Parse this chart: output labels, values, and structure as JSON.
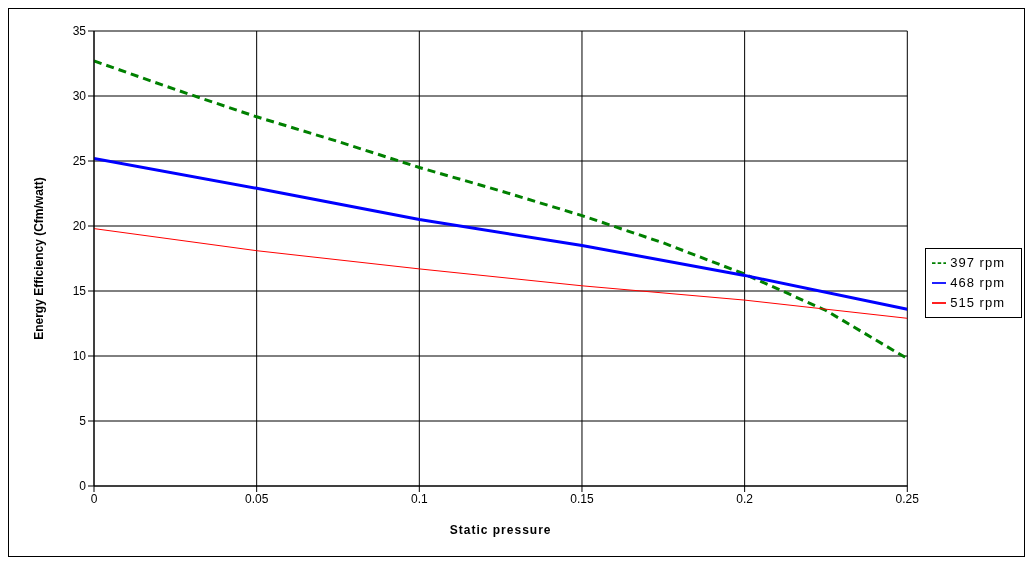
{
  "chart_data": {
    "type": "line",
    "xlabel": "Static pressure",
    "ylabel": "Energy Efficiency (Cfm/watt)",
    "xlim": [
      0,
      0.25
    ],
    "xticks": [
      0,
      0.05,
      0.1,
      0.15,
      0.2,
      0.25
    ],
    "ylim": [
      0,
      35
    ],
    "yticks": [
      0,
      5,
      10,
      15,
      20,
      25,
      30,
      35
    ],
    "grid": true,
    "legend": "right",
    "marker": "none",
    "series": [
      {
        "name": "397 rpm",
        "color": "#008000",
        "line_style": "dashed",
        "x": [
          0,
          0.025,
          0.05,
          0.075,
          0.1,
          0.125,
          0.15,
          0.175,
          0.2,
          0.225,
          0.25
        ],
        "values": [
          32.7,
          30.5,
          28.4,
          26.5,
          24.5,
          22.7,
          20.8,
          18.7,
          16.3,
          13.5,
          9.8
        ]
      },
      {
        "name": "468 rpm",
        "color": "#0000ff",
        "line_style": "solid",
        "x": [
          0,
          0.05,
          0.1,
          0.15,
          0.2,
          0.25
        ],
        "values": [
          25.2,
          22.9,
          20.5,
          18.5,
          16.2,
          13.6
        ]
      },
      {
        "name": "515 rpm",
        "color": "#ff0000",
        "line_style": "solid",
        "x": [
          0,
          0.05,
          0.1,
          0.15,
          0.2,
          0.25
        ],
        "values": [
          19.8,
          18.1,
          16.7,
          15.4,
          14.3,
          12.9
        ]
      }
    ]
  }
}
